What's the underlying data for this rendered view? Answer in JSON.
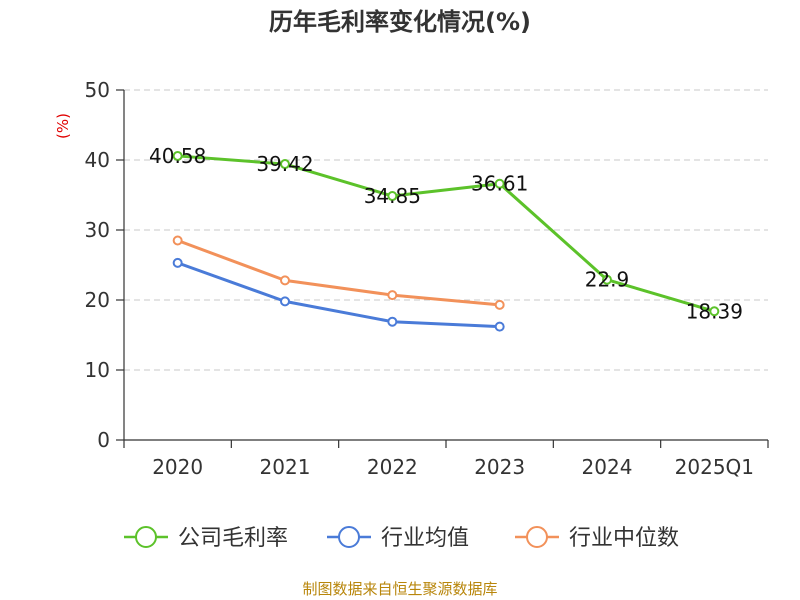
{
  "chart_data": {
    "type": "line",
    "title": "历年毛利率变化情况(%)",
    "ylabel": "(%)",
    "ylim": [
      0,
      50
    ],
    "yticks": [
      0,
      10,
      20,
      30,
      40,
      50
    ],
    "categories": [
      "2020",
      "2021",
      "2022",
      "2023",
      "2024",
      "2025Q1"
    ],
    "grid": "horizontal dashed",
    "legend_position": "bottom",
    "series": [
      {
        "name": "公司毛利率",
        "color": "#5cc22a",
        "values": [
          40.58,
          39.42,
          34.85,
          36.61,
          22.9,
          18.39
        ],
        "labels": [
          "40.58",
          "39.42",
          "34.85",
          "36.61",
          "22.9",
          "18.39"
        ],
        "show_labels": true
      },
      {
        "name": "行业均值",
        "color": "#4a7bd8",
        "values": [
          25.3,
          19.8,
          16.9,
          16.2,
          null,
          null
        ],
        "show_labels": false
      },
      {
        "name": "行业中位数",
        "color": "#f2915a",
        "values": [
          28.5,
          22.8,
          20.7,
          19.3,
          null,
          null
        ],
        "show_labels": false
      }
    ]
  },
  "source": "制图数据来自恒生聚源数据库"
}
